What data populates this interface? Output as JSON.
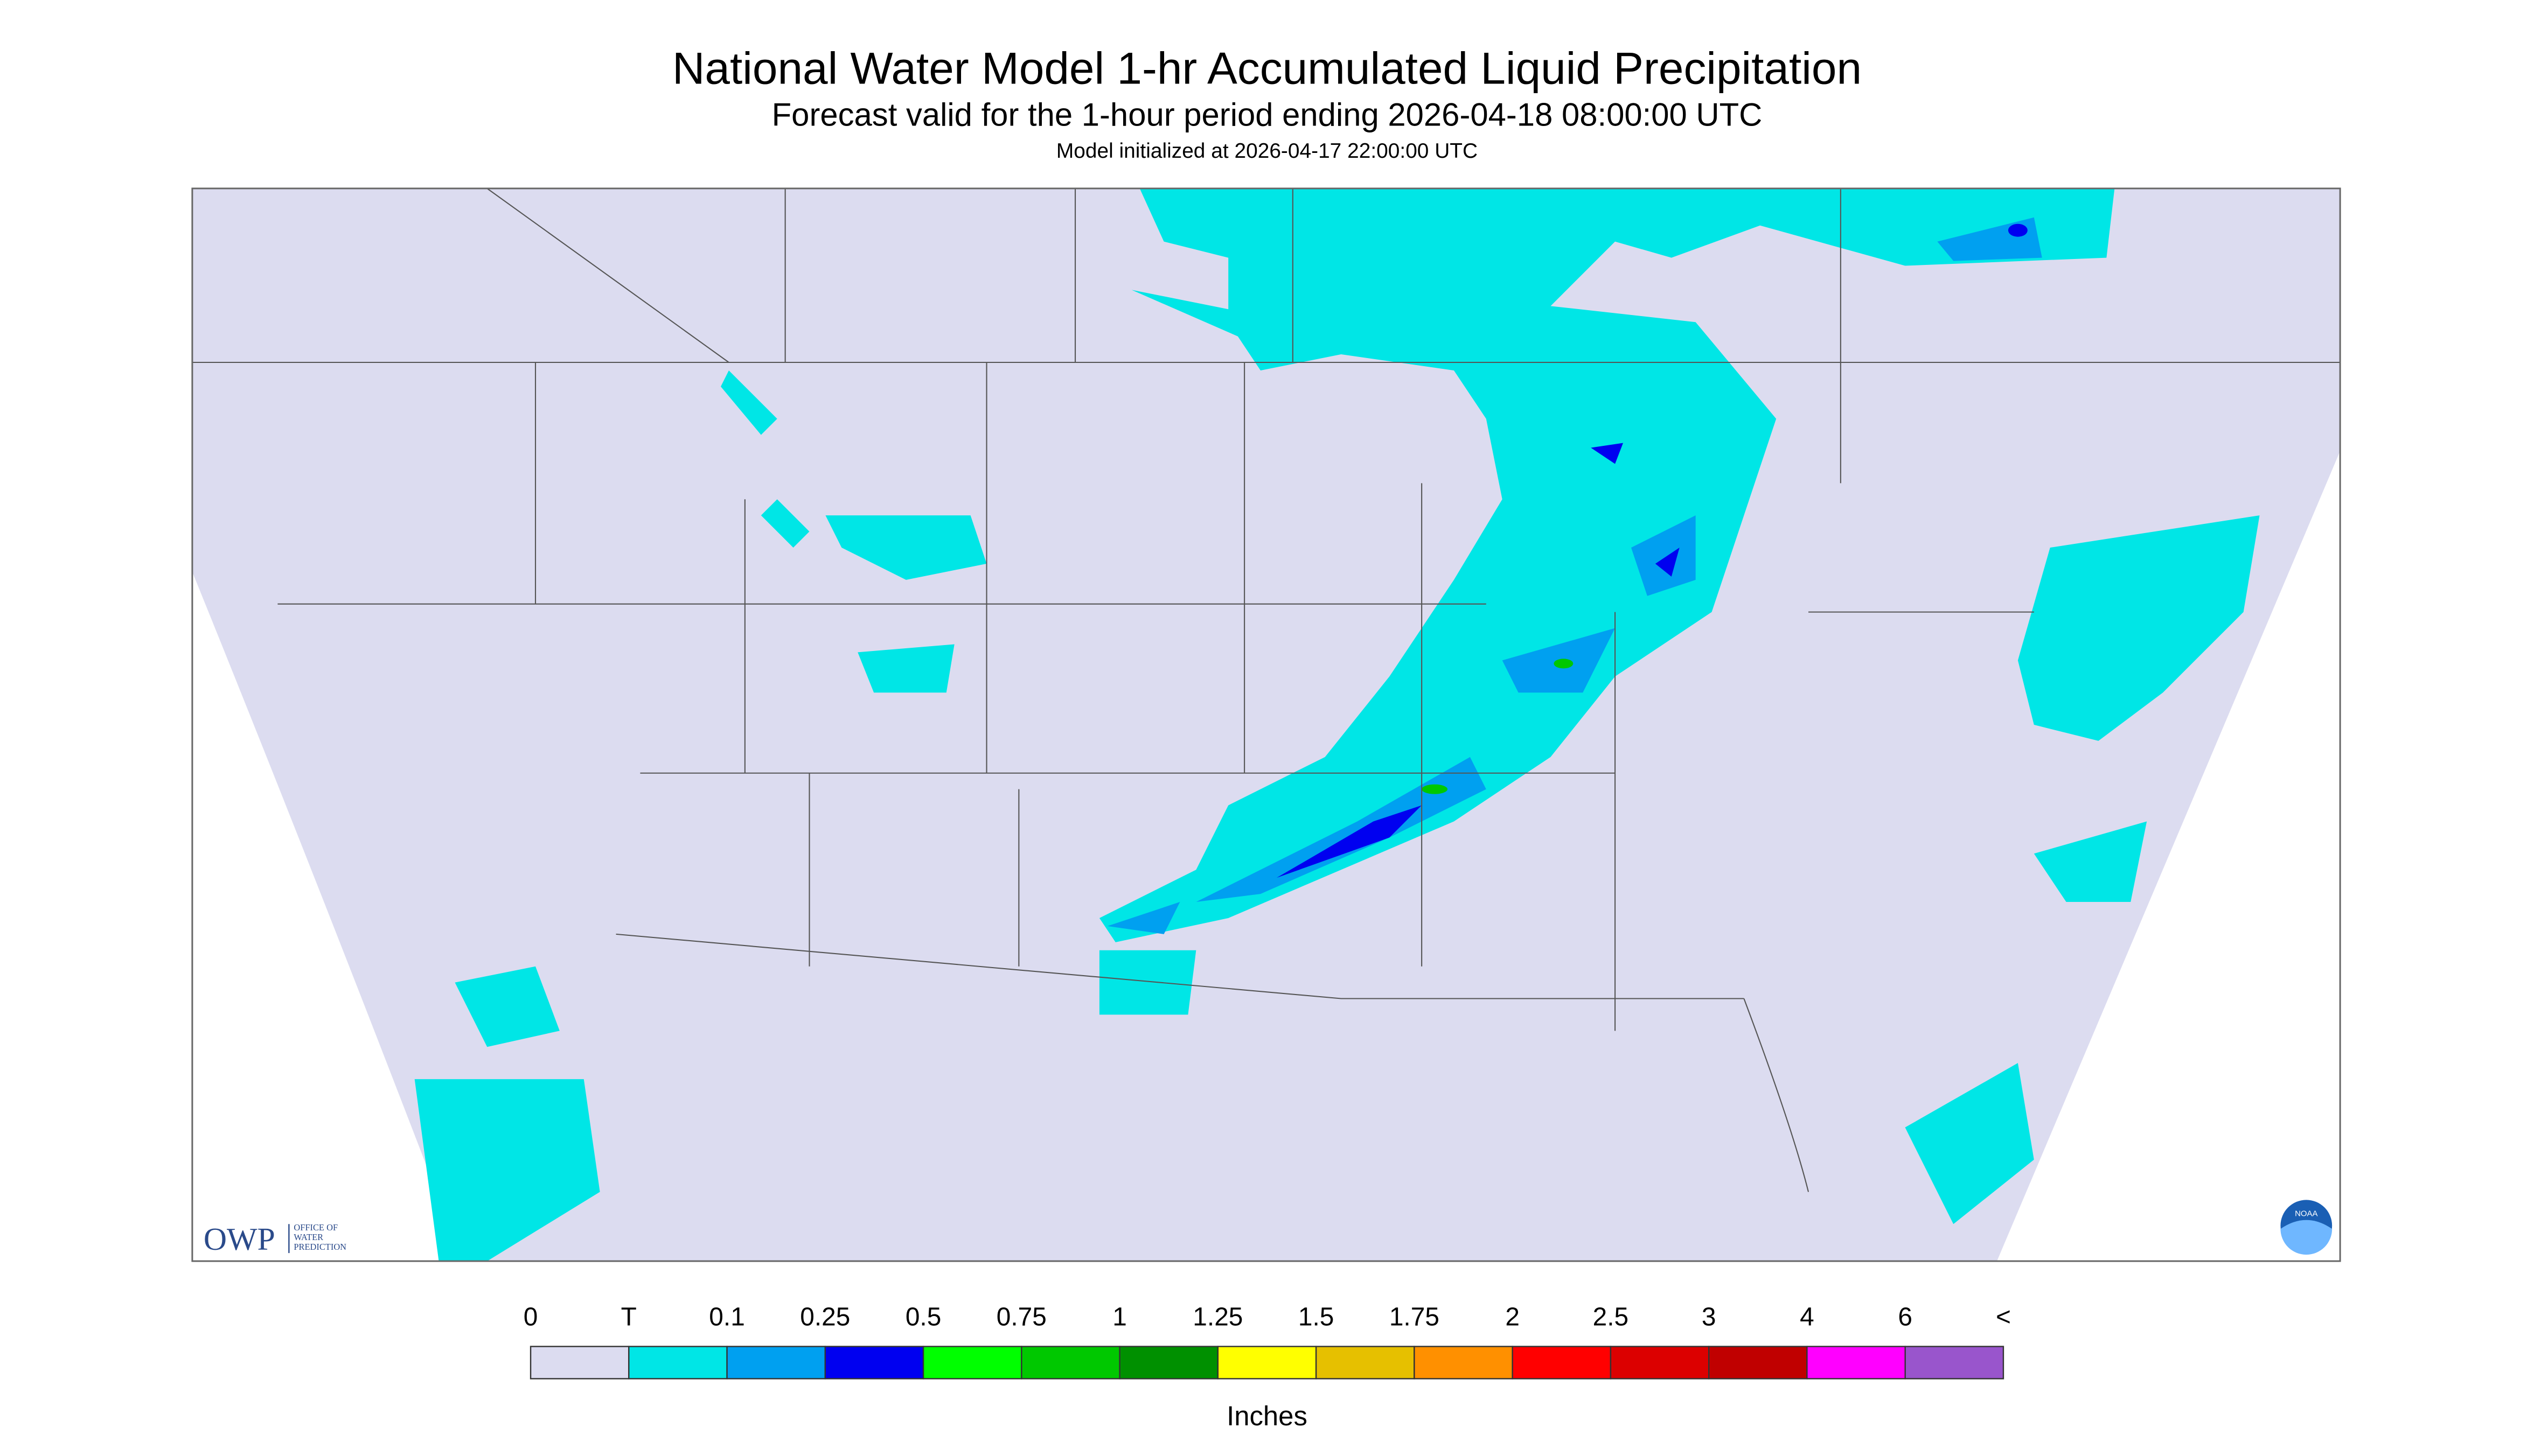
{
  "header": {
    "title": "National Water Model 1-hr Accumulated Liquid Precipitation",
    "subtitle": "Forecast valid for the 1-hour period ending 2026-04-18 08:00:00 UTC",
    "init": "Model initialized at 2026-04-17 22:00:00 UTC"
  },
  "logo": {
    "owp": "OWP",
    "office": [
      "OFFICE OF",
      "WATER",
      "PREDICTION"
    ],
    "noaa": "NOAA"
  },
  "legend": {
    "labels": [
      "0",
      "T",
      "0.1",
      "0.25",
      "0.5",
      "0.75",
      "1",
      "1.25",
      "1.5",
      "1.75",
      "2",
      "2.5",
      "3",
      "4",
      "6",
      "<"
    ],
    "colors": [
      "#dcdcf0",
      "#00e6e6",
      "#00a0f0",
      "#0000f0",
      "#00ff00",
      "#00c800",
      "#009000",
      "#ffff00",
      "#e6c000",
      "#ff9000",
      "#ff0000",
      "#dc0000",
      "#c00000",
      "#ff00ff",
      "#9955cc"
    ],
    "unit": "Inches"
  }
}
